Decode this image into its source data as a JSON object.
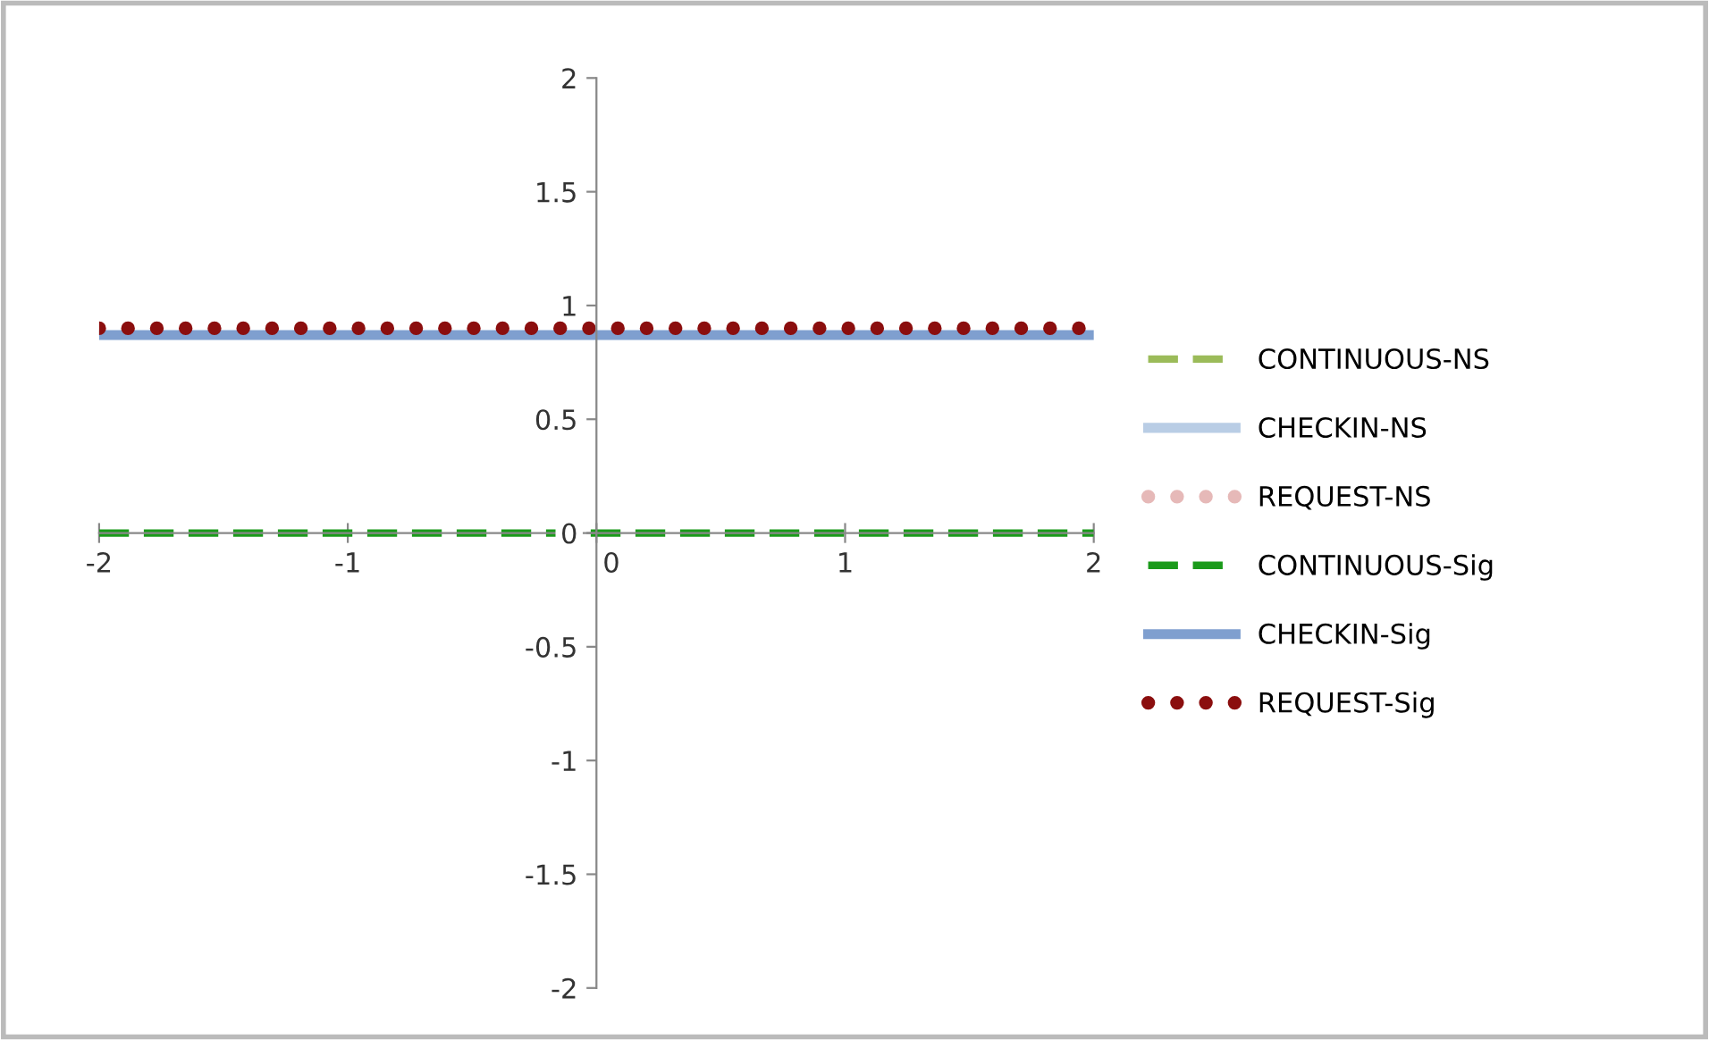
{
  "chart_data": {
    "type": "line",
    "x": [
      -2,
      2
    ],
    "xlim": [
      -2,
      2
    ],
    "ylim": [
      -2,
      2
    ],
    "xticks": [
      -2,
      -1,
      0,
      1,
      2
    ],
    "yticks": [
      -2,
      -1.5,
      -1,
      -0.5,
      0,
      0.5,
      1,
      1.5,
      2
    ],
    "grid": false,
    "legend": "right",
    "series": [
      {
        "name": "CONTINUOUS-NS",
        "color": "#9bbb59",
        "line_style": "dashed",
        "values": [
          null,
          null
        ]
      },
      {
        "name": "CHECKIN-NS",
        "color": "#b9cde5",
        "line_style": "solid",
        "values": [
          null,
          null
        ]
      },
      {
        "name": "REQUEST-NS",
        "color": "#e6b9b8",
        "line_style": "dotted",
        "values": [
          null,
          null
        ]
      },
      {
        "name": "CONTINUOUS-Sig",
        "color": "#1a9a1a",
        "line_style": "dashed",
        "values": [
          0,
          0
        ]
      },
      {
        "name": "CHECKIN-Sig",
        "color": "#7f9fcf",
        "line_style": "solid",
        "values": [
          0.87,
          0.87
        ]
      },
      {
        "name": "REQUEST-Sig",
        "color": "#8b0e0e",
        "line_style": "dotted",
        "values": [
          0.9,
          0.9
        ]
      }
    ]
  }
}
